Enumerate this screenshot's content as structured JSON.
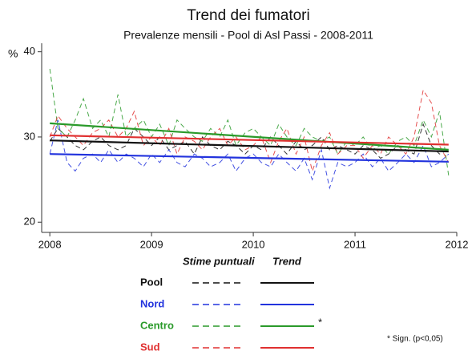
{
  "chart_data": {
    "type": "line",
    "title": "Trend dei fumatori",
    "subtitle": "Prevalenze mensili - Pool di Asl Passi - 2008-2011",
    "y_label": "%",
    "x": [
      2008,
      2008.08,
      2008.17,
      2008.25,
      2008.33,
      2008.42,
      2008.5,
      2008.58,
      2008.67,
      2008.75,
      2008.83,
      2008.92,
      2009,
      2009.08,
      2009.17,
      2009.25,
      2009.33,
      2009.42,
      2009.5,
      2009.58,
      2009.67,
      2009.75,
      2009.83,
      2009.92,
      2010,
      2010.08,
      2010.17,
      2010.25,
      2010.33,
      2010.42,
      2010.5,
      2010.58,
      2010.67,
      2010.75,
      2010.83,
      2010.92,
      2011,
      2011.08,
      2011.17,
      2011.25,
      2011.33,
      2011.42,
      2011.5,
      2011.58,
      2011.67,
      2011.75,
      2011.83,
      2011.92
    ],
    "xlim": [
      2007.92,
      2012
    ],
    "xticks": [
      2008,
      2009,
      2010,
      2011,
      2012
    ],
    "ylim": [
      18.8,
      41
    ],
    "yticks": [
      20,
      30,
      40
    ],
    "legend_headers": [
      "Stime puntuali",
      "Trend"
    ],
    "note": "* Sign. (p<0,05)",
    "series": [
      {
        "name": "Pool",
        "color": "#111111",
        "values": [
          29.5,
          31,
          30,
          29,
          28.5,
          29.5,
          30,
          29,
          28.5,
          29,
          31,
          30,
          29,
          30,
          28.5,
          29,
          29.5,
          28,
          30,
          29,
          28.5,
          29.5,
          29,
          28,
          29,
          28.5,
          30,
          29,
          28,
          29.5,
          28.5,
          29,
          30,
          28.5,
          29,
          28.5,
          28,
          29,
          28.5,
          27.5,
          28,
          29,
          28.5,
          28,
          31.5,
          29,
          28,
          28.5
        ],
        "trend": {
          "x": [
            2008,
            2011.92
          ],
          "values": [
            29.6,
            28.3
          ]
        }
      },
      {
        "name": "Nord",
        "color": "#2233dd",
        "values": [
          28,
          32,
          27,
          26,
          27.5,
          28,
          27,
          28.5,
          27,
          28,
          27.5,
          26.5,
          28,
          27,
          28.5,
          27,
          26.5,
          28,
          27.5,
          26.5,
          27,
          28,
          26,
          27.5,
          28,
          27,
          26.5,
          28,
          27,
          26,
          27.5,
          25,
          28.5,
          24,
          27,
          26.5,
          27,
          28,
          26.5,
          27.5,
          26,
          27,
          28,
          27,
          29,
          26.5,
          27,
          28
        ],
        "trend": {
          "x": [
            2008,
            2011.92
          ],
          "values": [
            28,
            27.1
          ]
        }
      },
      {
        "name": "Centro",
        "color": "#2a9a2a",
        "mark": "*",
        "values": [
          38,
          31,
          30,
          32,
          34.5,
          31,
          32,
          30,
          35,
          30,
          31,
          32,
          30,
          31.5,
          29,
          32,
          31,
          30,
          29.5,
          31,
          30,
          32,
          29,
          30.5,
          31,
          30,
          29,
          31.5,
          30,
          29,
          31,
          30,
          29.5,
          30,
          28,
          29.5,
          29,
          30,
          28.5,
          29,
          28,
          29.5,
          30,
          29,
          32,
          30,
          33,
          25.5
        ],
        "trend": {
          "x": [
            2008,
            2011.92
          ],
          "values": [
            31.6,
            28.5
          ]
        }
      },
      {
        "name": "Sud",
        "color": "#e03030",
        "values": [
          30,
          32.5,
          31,
          30,
          29,
          30.5,
          31,
          32,
          30,
          31,
          33,
          29,
          30,
          29,
          31,
          28,
          30,
          29.5,
          28.5,
          30,
          31,
          29,
          30,
          28.5,
          29,
          30,
          27,
          29.5,
          31,
          28,
          30,
          26,
          29,
          30.5,
          28,
          29,
          29,
          27.5,
          29,
          28,
          30,
          29,
          28,
          30,
          35.5,
          34,
          29,
          27
        ],
        "trend": {
          "x": [
            2008,
            2011.92
          ],
          "values": [
            30.2,
            29.1
          ]
        }
      }
    ]
  }
}
